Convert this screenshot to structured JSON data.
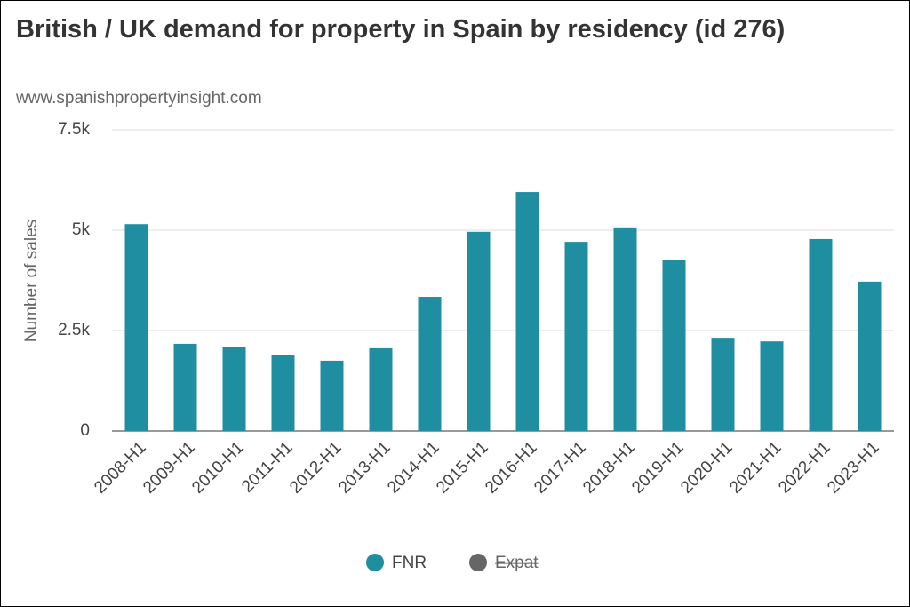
{
  "chart_data": {
    "type": "bar",
    "title": "British / UK demand for property in Spain by residency (id 276)",
    "subtitle": "www.spanishpropertyinsight.com",
    "y_label": "Number of sales",
    "categories": [
      "2008-H1",
      "2009-H1",
      "2010-H1",
      "2011-H1",
      "2012-H1",
      "2013-H1",
      "2014-H1",
      "2015-H1",
      "2016-H1",
      "2017-H1",
      "2018-H1",
      "2019-H1",
      "2020-H1",
      "2021-H1",
      "2022-H1",
      "2023-H1"
    ],
    "series": [
      {
        "name": "FNR",
        "color": "#1f8ea0",
        "values": [
          5150,
          2170,
          2100,
          1900,
          1750,
          2060,
          3340,
          4960,
          5950,
          4710,
          5070,
          4250,
          2320,
          2230,
          4780,
          3720
        ]
      },
      {
        "name": "Expat",
        "color": "#666666",
        "hidden": true,
        "values": [
          null,
          null,
          null,
          null,
          null,
          null,
          null,
          null,
          null,
          null,
          null,
          null,
          null,
          null,
          null,
          null
        ]
      }
    ],
    "ylim": [
      0,
      7500
    ],
    "yticks": [
      0,
      {
        "value": 2500,
        "label": "2.5k"
      },
      {
        "value": 5000,
        "label": "5k"
      },
      {
        "value": 7500,
        "label": "7.5k"
      }
    ],
    "grid": true
  }
}
